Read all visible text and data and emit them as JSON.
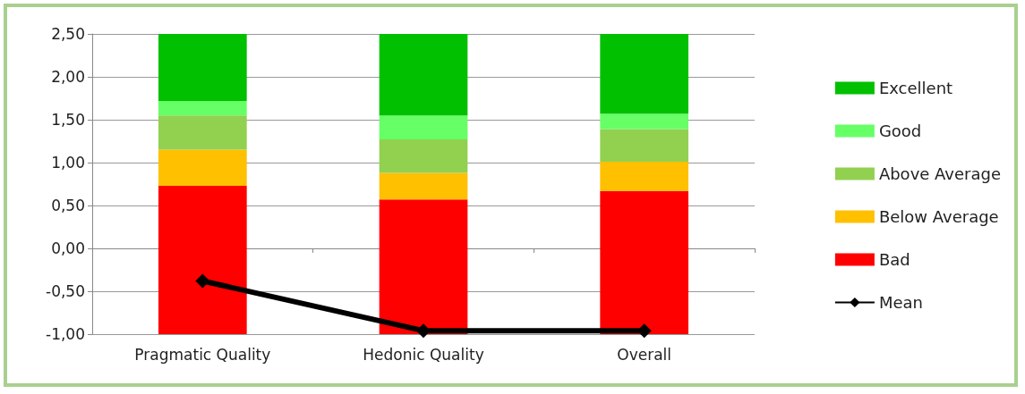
{
  "chart_data": {
    "type": "bar",
    "categories": [
      "Pragmatic Quality",
      "Hedonic Quality",
      "Overall"
    ],
    "series": [
      {
        "name": "Bad",
        "color": "#ff0000",
        "base": [
          -1,
          -1,
          -1
        ],
        "values": [
          1.73,
          1.57,
          1.67
        ]
      },
      {
        "name": "Below Average",
        "color": "#ffc000",
        "base": [
          0.73,
          0.57,
          0.67
        ],
        "values": [
          0.42,
          0.31,
          0.34
        ]
      },
      {
        "name": "Above Average",
        "color": "#92d050",
        "base": [
          1.15,
          0.88,
          1.01
        ],
        "values": [
          0.4,
          0.39,
          0.38
        ]
      },
      {
        "name": "Good",
        "color": "#66ff66",
        "base": [
          1.55,
          1.27,
          1.39
        ],
        "values": [
          0.17,
          0.28,
          0.18
        ]
      },
      {
        "name": "Excellent",
        "color": "#00c000",
        "base": [
          1.72,
          1.55,
          1.57
        ],
        "values": [
          0.78,
          0.95,
          0.93
        ]
      },
      {
        "name": "Mean",
        "type": "line",
        "color": "#000000",
        "marker": "diamond",
        "values": [
          -0.38,
          -0.96,
          -0.96
        ]
      }
    ],
    "ylim": [
      -1,
      2.5
    ],
    "yticks": [
      {
        "value": -1,
        "label": "-1,00"
      },
      {
        "value": -0.5,
        "label": "-0,50"
      },
      {
        "value": 0,
        "label": "0,00"
      },
      {
        "value": 0.5,
        "label": "0,50"
      },
      {
        "value": 1,
        "label": "1,00"
      },
      {
        "value": 1.5,
        "label": "1,50"
      },
      {
        "value": 2,
        "label": "2,00"
      },
      {
        "value": 2.5,
        "label": "2,50"
      }
    ],
    "grid": "y",
    "legend": "right"
  }
}
